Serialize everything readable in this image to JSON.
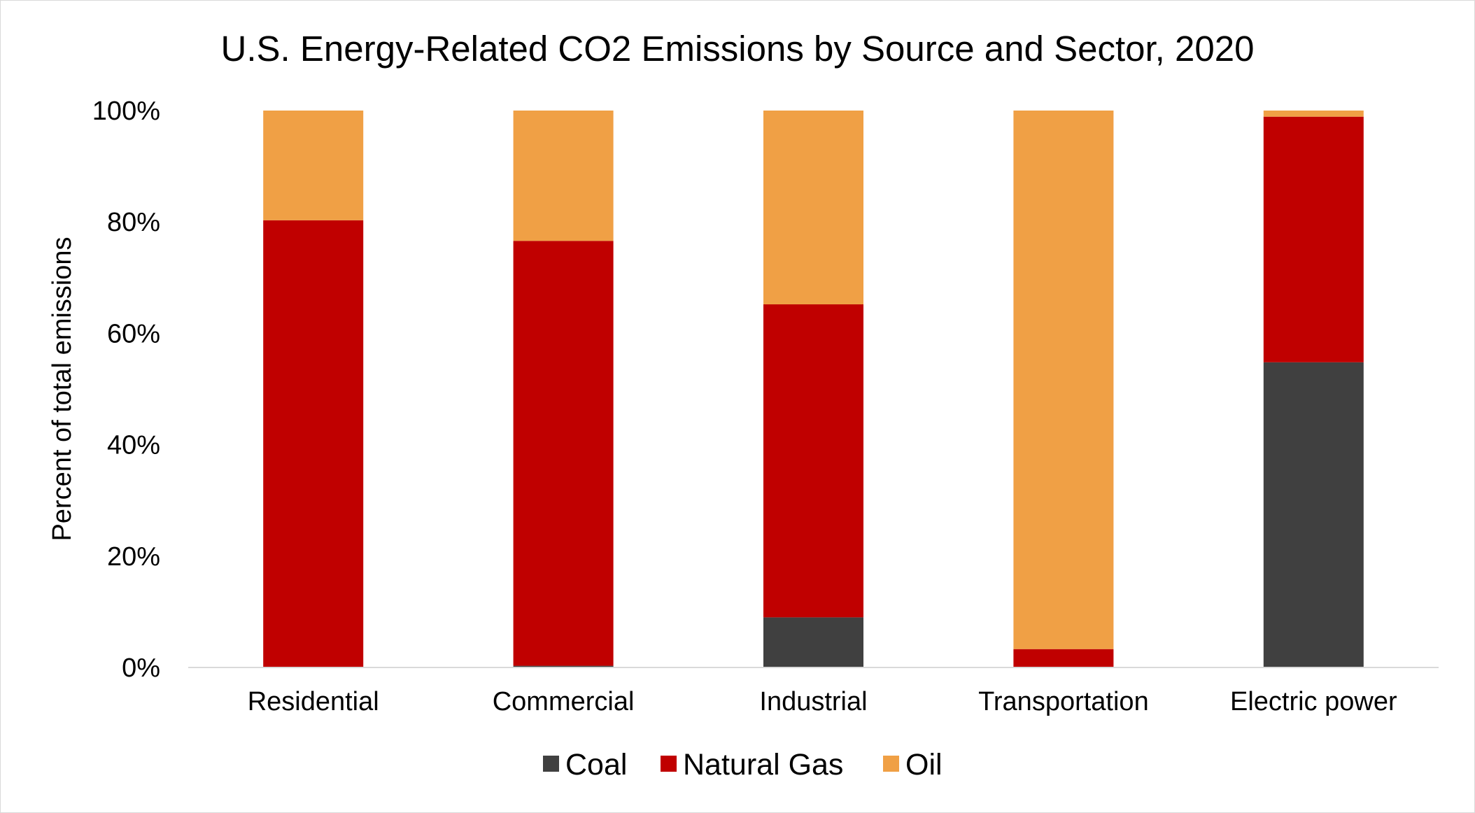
{
  "chart_data": {
    "type": "bar",
    "stacked": true,
    "percent_stacked": true,
    "title": "U.S. Energy-Related CO2 Emissions by Source and Sector, 2020",
    "xlabel": "",
    "ylabel": "Percent of total emissions",
    "ylim": [
      0,
      100
    ],
    "yticks": [
      "0%",
      "20%",
      "40%",
      "60%",
      "80%",
      "100%"
    ],
    "ytick_values": [
      0,
      20,
      40,
      60,
      80,
      100
    ],
    "grid": false,
    "legend_position": "bottom",
    "categories": [
      "Residential",
      "Commercial",
      "Industrial",
      "Transportation",
      "Electric power"
    ],
    "series": [
      {
        "name": "Coal",
        "color": "#404040",
        "values": [
          0,
          0.3,
          9,
          0,
          54.8
        ]
      },
      {
        "name": "Natural Gas",
        "color": "#c00000",
        "values": [
          80.3,
          76.3,
          56.2,
          3.3,
          44.1
        ]
      },
      {
        "name": "Oil",
        "color": "#f0a045",
        "values": [
          19.7,
          23.4,
          34.8,
          96.7,
          1.1
        ]
      }
    ]
  }
}
